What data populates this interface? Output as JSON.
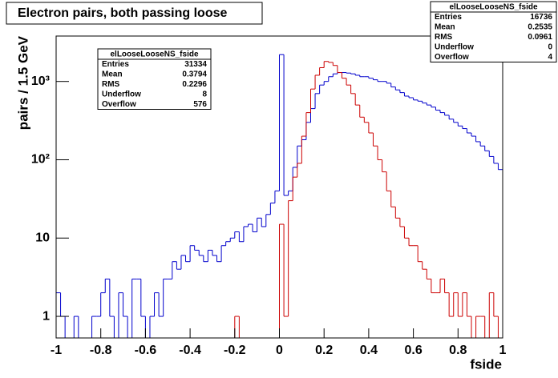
{
  "chart_data": {
    "type": "histogram",
    "title": "Electron pairs, both passing loose",
    "xlabel": "fside",
    "ylabel": "pairs / 1.5 GeV",
    "log_y": true,
    "xlim": [
      -1,
      1
    ],
    "ylim": [
      0.53,
      3800
    ],
    "xticks": [
      -1,
      -0.8,
      -0.6,
      -0.4,
      -0.2,
      0,
      0.2,
      0.4,
      0.6,
      0.8,
      1
    ],
    "yticks": [
      1,
      10,
      {
        "value": 100,
        "label": "10²"
      },
      {
        "value": 1000,
        "label": "10³"
      }
    ],
    "bins": [
      -1,
      -0.98,
      -0.96,
      -0.94,
      -0.92,
      -0.9,
      -0.88,
      -0.86,
      -0.84,
      -0.82,
      -0.8,
      -0.78,
      -0.76,
      -0.74,
      -0.72,
      -0.7,
      -0.68,
      -0.66,
      -0.64,
      -0.62,
      -0.6,
      -0.58,
      -0.56,
      -0.54,
      -0.52,
      -0.5,
      -0.48,
      -0.46,
      -0.44,
      -0.42,
      -0.4,
      -0.38,
      -0.36,
      -0.34,
      -0.32,
      -0.3,
      -0.28,
      -0.26,
      -0.24,
      -0.22,
      -0.2,
      -0.18,
      -0.16,
      -0.14,
      -0.12,
      -0.1,
      -0.08,
      -0.06,
      -0.04,
      -0.02,
      0,
      0.02,
      0.04,
      0.06,
      0.08,
      0.1,
      0.12,
      0.14,
      0.16,
      0.18,
      0.2,
      0.22,
      0.24,
      0.26,
      0.28,
      0.3,
      0.32,
      0.34,
      0.36,
      0.38,
      0.4,
      0.42,
      0.44,
      0.46,
      0.48,
      0.5,
      0.52,
      0.54,
      0.56,
      0.58,
      0.6,
      0.62,
      0.64,
      0.66,
      0.68,
      0.7,
      0.72,
      0.74,
      0.76,
      0.78,
      0.8,
      0.82,
      0.84,
      0.86,
      0.88,
      0.9,
      0.92,
      0.94,
      0.96,
      0.98,
      1
    ],
    "series": [
      {
        "name": "elLooseLooseNS_fside",
        "color": "#0000cc",
        "values": [
          2,
          1,
          0,
          0,
          1,
          0,
          0,
          0,
          1,
          1,
          2,
          3,
          1,
          0,
          2,
          1,
          0,
          3,
          3,
          1,
          0,
          1,
          2,
          1,
          3,
          3,
          5,
          4,
          6,
          5,
          8,
          7,
          6,
          5,
          7,
          6,
          5,
          8,
          9,
          10,
          12,
          9,
          14,
          15,
          12,
          18,
          14,
          20,
          28,
          40,
          2200,
          35,
          40,
          80,
          150,
          180,
          300,
          450,
          700,
          900,
          1000,
          1150,
          1250,
          1300,
          1300,
          1280,
          1250,
          1200,
          1150,
          1150,
          1100,
          1050,
          1000,
          1000,
          950,
          850,
          780,
          720,
          650,
          620,
          580,
          560,
          530,
          500,
          470,
          430,
          400,
          370,
          330,
          300,
          270,
          250,
          220,
          200,
          170,
          150,
          130,
          110,
          90,
          75
        ],
        "stats": [
          [
            "Entries",
            "31334"
          ],
          [
            "Mean",
            "0.3794"
          ],
          [
            "RMS",
            "0.2296"
          ],
          [
            "Underflow",
            "8"
          ],
          [
            "Overflow",
            "576"
          ]
        ]
      },
      {
        "name": "elLooseLooseNS_fside",
        "color": "#cc0000",
        "values": [
          0,
          0,
          0,
          0,
          0,
          0,
          0,
          0,
          0,
          0,
          0,
          0,
          0,
          0,
          0,
          0,
          0,
          0,
          0,
          0,
          0,
          0,
          0,
          0,
          0,
          0,
          0,
          0,
          0,
          0,
          0,
          0,
          0,
          0,
          0,
          0,
          0,
          0,
          0,
          0,
          1,
          0,
          0,
          0,
          0,
          0,
          0,
          0,
          0,
          0,
          15,
          1,
          30,
          60,
          90,
          200,
          400,
          800,
          1200,
          1500,
          1800,
          1750,
          1600,
          1300,
          1100,
          900,
          700,
          500,
          350,
          300,
          220,
          150,
          100,
          70,
          40,
          25,
          18,
          14,
          10,
          8,
          8,
          5,
          4,
          3,
          2,
          2,
          3,
          2,
          1,
          2,
          1,
          2,
          1,
          0,
          1,
          1,
          0,
          2,
          1,
          0
        ],
        "stats": [
          [
            "Entries",
            "16736"
          ],
          [
            "Mean",
            "0.2535"
          ],
          [
            "RMS",
            "0.0961"
          ],
          [
            "Underflow",
            "0"
          ],
          [
            "Overflow",
            "4"
          ]
        ]
      }
    ]
  }
}
